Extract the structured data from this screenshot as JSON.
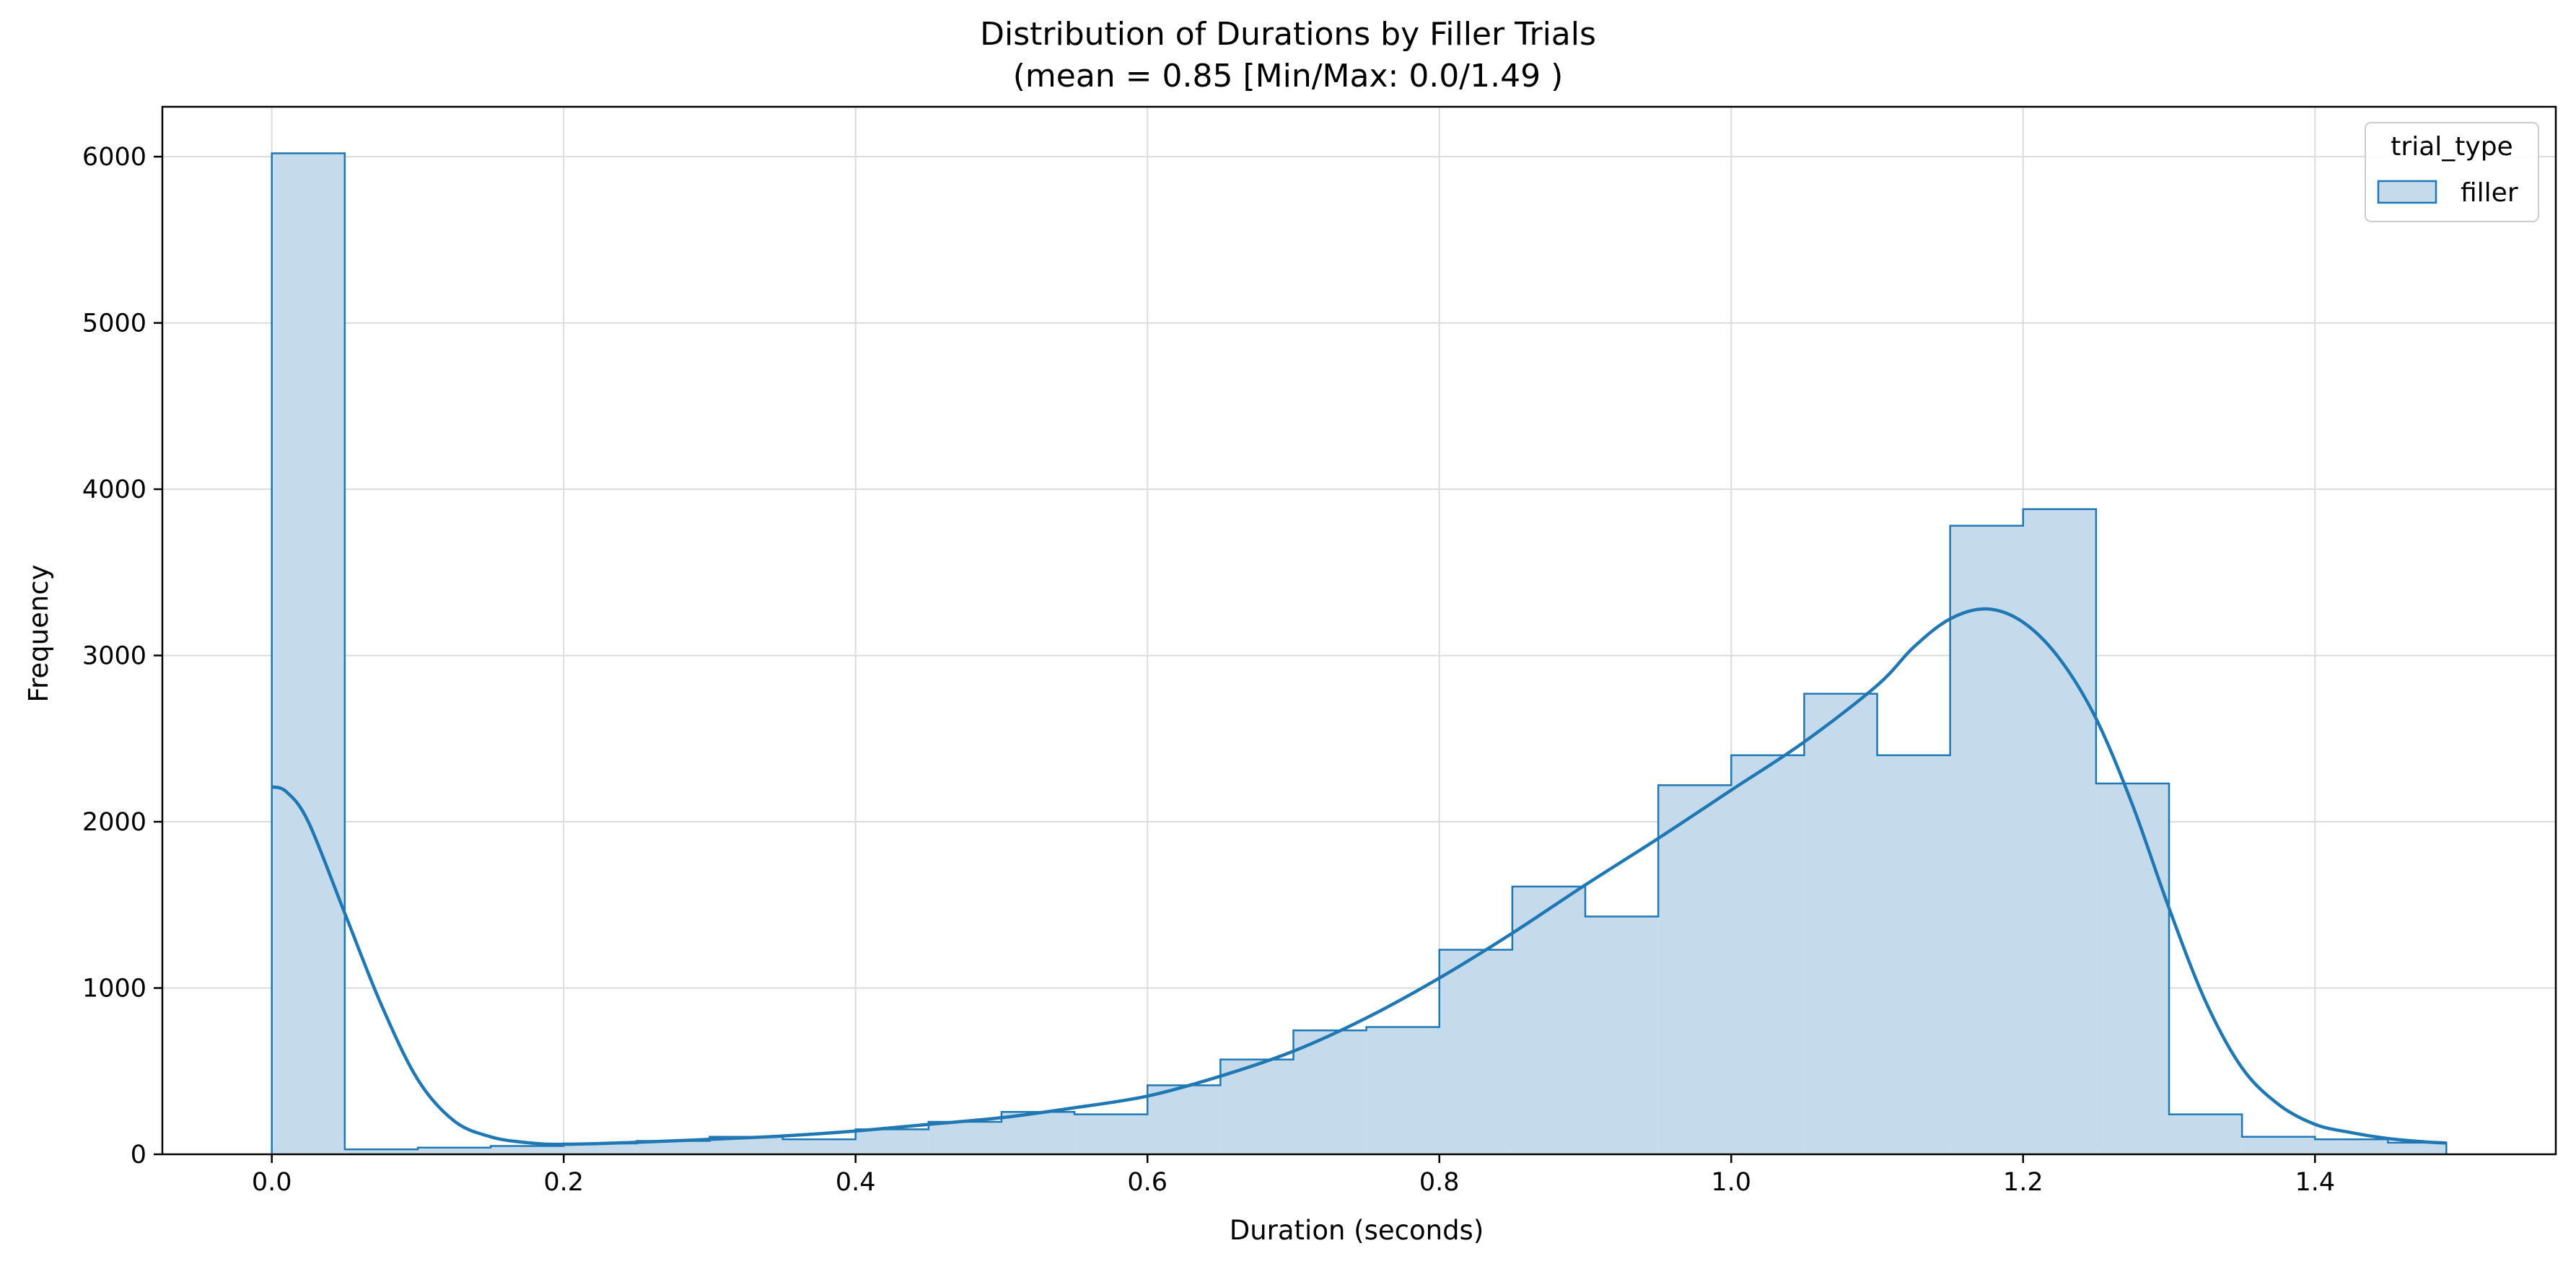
{
  "chart_data": {
    "type": "bar",
    "title": "Distribution of Durations by Filler Trials",
    "subtitle": "(mean = 0.85 [Min/Max: 0.0/1.49 )",
    "xlabel": "Duration (seconds)",
    "ylabel": "Frequency",
    "xlim": [
      -0.075,
      1.565
    ],
    "ylim": [
      0,
      6300
    ],
    "xticks": [
      0.0,
      0.2,
      0.4,
      0.6,
      0.8,
      1.0,
      1.2,
      1.4
    ],
    "xtick_labels": [
      "0.0",
      "0.2",
      "0.4",
      "0.6",
      "0.8",
      "1.0",
      "1.2",
      "1.4"
    ],
    "yticks": [
      0,
      1000,
      2000,
      3000,
      4000,
      5000,
      6000
    ],
    "ytick_labels": [
      "0",
      "1000",
      "2000",
      "3000",
      "4000",
      "5000",
      "6000"
    ],
    "grid": true,
    "legend": {
      "title": "trial_type",
      "position": "top-right"
    },
    "colors": {
      "edge": "#1f77b4",
      "fill": "#c5dbec"
    },
    "series": [
      {
        "name": "filler",
        "bin_edges": [
          0.0,
          0.05,
          0.1,
          0.15,
          0.2,
          0.25,
          0.3,
          0.35,
          0.4,
          0.45,
          0.5,
          0.55,
          0.6,
          0.65,
          0.7,
          0.75,
          0.8,
          0.85,
          0.9,
          0.95,
          1.0,
          1.05,
          1.1,
          1.15,
          1.2,
          1.25,
          1.3,
          1.35,
          1.4,
          1.45,
          1.49
        ],
        "counts": [
          6020,
          30,
          40,
          50,
          65,
          80,
          105,
          90,
          150,
          195,
          255,
          240,
          415,
          570,
          745,
          765,
          1230,
          1610,
          1430,
          2220,
          2400,
          2770,
          2400,
          3780,
          3880,
          2230,
          240,
          105,
          90,
          70
        ],
        "kde": {
          "x": [
            0.0,
            0.01,
            0.025,
            0.05,
            0.075,
            0.1,
            0.125,
            0.15,
            0.175,
            0.2,
            0.25,
            0.3,
            0.35,
            0.4,
            0.45,
            0.5,
            0.55,
            0.6,
            0.65,
            0.7,
            0.75,
            0.8,
            0.85,
            0.9,
            0.95,
            1.0,
            1.05,
            1.1,
            1.125,
            1.15,
            1.175,
            1.2,
            1.225,
            1.25,
            1.275,
            1.3,
            1.325,
            1.35,
            1.375,
            1.4,
            1.425,
            1.45,
            1.475,
            1.49
          ],
          "y": [
            2210,
            2180,
            2000,
            1450,
            900,
            450,
            200,
            105,
            70,
            60,
            72,
            90,
            110,
            140,
            180,
            220,
            280,
            350,
            470,
            620,
            820,
            1060,
            1330,
            1620,
            1900,
            2190,
            2480,
            2820,
            3050,
            3220,
            3280,
            3200,
            2980,
            2620,
            2100,
            1480,
            920,
            520,
            300,
            180,
            130,
            95,
            75,
            68
          ]
        }
      }
    ]
  }
}
